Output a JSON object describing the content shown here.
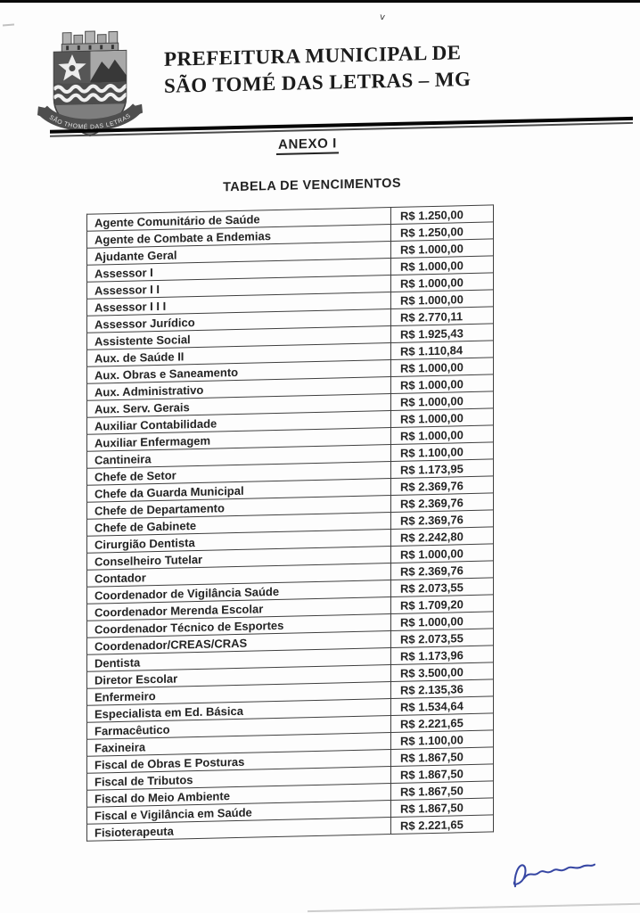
{
  "header": {
    "title_line1": "PREFEITURA MUNICIPAL DE",
    "title_line2": "SÃO TOMÉ DAS LETRAS – MG",
    "crest_banner_text": "SÃO THOMÉ DAS LETRAS"
  },
  "titles": {
    "annex": "ANEXO I",
    "table": "TABELA DE VENCIMENTOS"
  },
  "salary_table": {
    "rows": [
      {
        "cargo": "Agente Comunitário de Saúde",
        "valor": "R$ 1.250,00"
      },
      {
        "cargo": "Agente de Combate a Endemias",
        "valor": "R$ 1.250,00"
      },
      {
        "cargo": "Ajudante Geral",
        "valor": "R$ 1.000,00"
      },
      {
        "cargo": "Assessor I",
        "valor": "R$ 1.000,00"
      },
      {
        "cargo": "Assessor I I",
        "valor": "R$ 1.000,00"
      },
      {
        "cargo": "Assessor I I I",
        "valor": "R$ 1.000,00"
      },
      {
        "cargo": "Assessor Jurídico",
        "valor": "R$ 2.770,11"
      },
      {
        "cargo": "Assistente Social",
        "valor": "R$ 1.925,43"
      },
      {
        "cargo": "Aux. de Saúde II",
        "valor": "R$ 1.110,84"
      },
      {
        "cargo": "Aux. Obras e Saneamento",
        "valor": "R$ 1.000,00"
      },
      {
        "cargo": "Aux. Administrativo",
        "valor": "R$ 1.000,00"
      },
      {
        "cargo": "Aux. Serv. Gerais",
        "valor": "R$ 1.000,00"
      },
      {
        "cargo": "Auxiliar Contabilidade",
        "valor": "R$ 1.000,00"
      },
      {
        "cargo": "Auxiliar Enfermagem",
        "valor": "R$ 1.000,00"
      },
      {
        "cargo": "Cantineira",
        "valor": "R$ 1.100,00"
      },
      {
        "cargo": "Chefe  de Setor",
        "valor": "R$ 1.173,95"
      },
      {
        "cargo": "Chefe da Guarda Municipal",
        "valor": "R$ 2.369,76"
      },
      {
        "cargo": "Chefe de Departamento",
        "valor": "R$ 2.369,76"
      },
      {
        "cargo": "Chefe de Gabinete",
        "valor": "R$ 2.369,76"
      },
      {
        "cargo": "Cirurgião Dentista",
        "valor": "R$ 2.242,80"
      },
      {
        "cargo": "Conselheiro Tutelar",
        "valor": "R$ 1.000,00"
      },
      {
        "cargo": "Contador",
        "valor": "R$ 2.369,76"
      },
      {
        "cargo": "Coordenador de Vigilância Saúde",
        "valor": "R$ 2.073,55"
      },
      {
        "cargo": "Coordenador Merenda Escolar",
        "valor": "R$ 1.709,20"
      },
      {
        "cargo": "Coordenador Técnico de Esportes",
        "valor": "R$ 1.000,00"
      },
      {
        "cargo": "Coordenador/CREAS/CRAS",
        "valor": "R$ 2.073,55"
      },
      {
        "cargo": "Dentista",
        "valor": "R$ 1.173,96"
      },
      {
        "cargo": "Diretor Escolar",
        "valor": "R$ 3.500,00"
      },
      {
        "cargo": "Enfermeiro",
        "valor": "R$ 2.135,36"
      },
      {
        "cargo": "Especialista em Ed. Básica",
        "valor": "R$ 1.534,64"
      },
      {
        "cargo": "Farmacêutico",
        "valor": "R$ 2.221,65"
      },
      {
        "cargo": "Faxineira",
        "valor": "R$ 1.100,00"
      },
      {
        "cargo": "Fiscal de Obras E Posturas",
        "valor": "R$ 1.867,50"
      },
      {
        "cargo": "Fiscal de Tributos",
        "valor": "R$ 1.867,50"
      },
      {
        "cargo": "Fiscal do Meio Ambiente",
        "valor": "R$ 1.867,50"
      },
      {
        "cargo": "Fiscal e Vigilância em Saúde",
        "valor": "R$ 1.867,50"
      },
      {
        "cargo": "Fisioterapeuta",
        "valor": "R$ 2.221,65"
      }
    ]
  },
  "colors": {
    "ink": "#242424",
    "table_border": "#3f3f3f",
    "signature_ink": "#3646a3"
  }
}
